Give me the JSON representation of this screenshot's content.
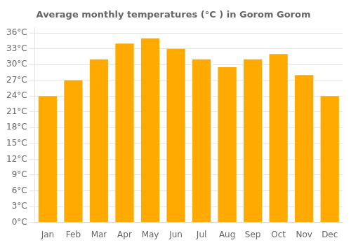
{
  "chart_data": {
    "type": "bar",
    "title": "Average monthly temperatures (°C ) in Gorom Gorom",
    "categories": [
      "Jan",
      "Feb",
      "Mar",
      "Apr",
      "May",
      "Jun",
      "Jul",
      "Aug",
      "Sep",
      "Oct",
      "Nov",
      "Dec"
    ],
    "values": [
      24,
      27,
      31,
      34,
      35,
      33,
      31,
      29.5,
      31,
      32,
      28,
      24
    ],
    "color": "#FFAA00",
    "ylim": [
      0,
      37
    ],
    "yticks": [
      {
        "value": 0,
        "label": "0°C"
      },
      {
        "value": 3,
        "label": "3°C"
      },
      {
        "value": 6,
        "label": "6°C"
      },
      {
        "value": 9,
        "label": "9°C"
      },
      {
        "value": 12,
        "label": "12°C"
      },
      {
        "value": 15,
        "label": "15°C"
      },
      {
        "value": 18,
        "label": "18°C"
      },
      {
        "value": 21,
        "label": "21°C"
      },
      {
        "value": 24,
        "label": "24°C"
      },
      {
        "value": 27,
        "label": "27°C"
      },
      {
        "value": 30,
        "label": "30°C"
      },
      {
        "value": 33,
        "label": "33°C"
      },
      {
        "value": 36,
        "label": "36°C"
      }
    ],
    "grid": true
  }
}
